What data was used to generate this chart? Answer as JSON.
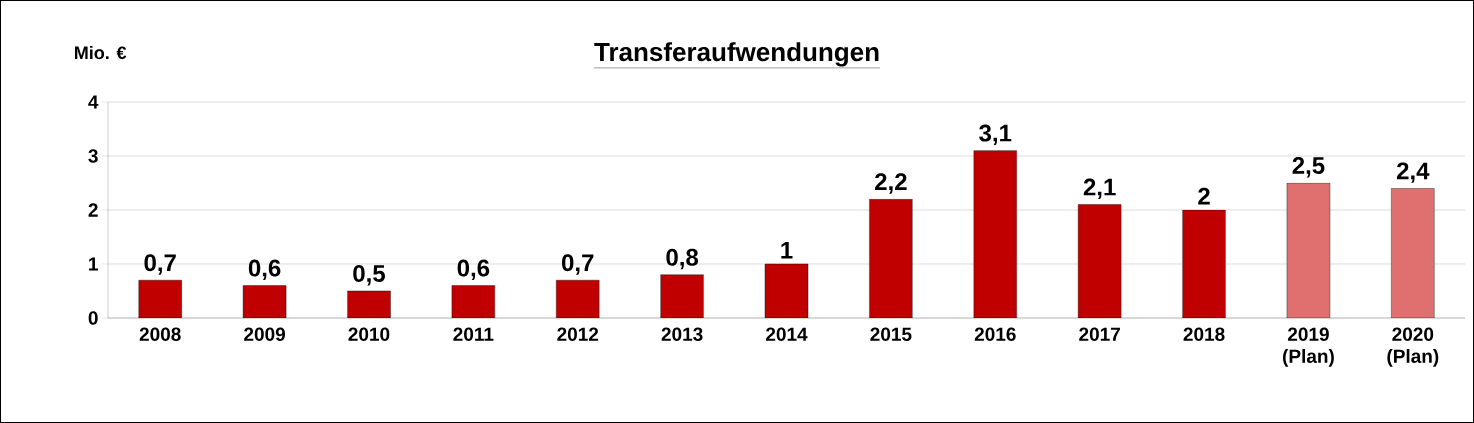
{
  "chart_data": {
    "type": "bar",
    "title": "Transferaufwendungen",
    "ylabel": "Mio. €",
    "categories": [
      "2008",
      "2009",
      "2010",
      "2011",
      "2012",
      "2013",
      "2014",
      "2015",
      "2016",
      "2017",
      "2018",
      "2019 (Plan)",
      "2020 (Plan)"
    ],
    "values": [
      0.7,
      0.6,
      0.5,
      0.6,
      0.7,
      0.8,
      1,
      2.2,
      3.1,
      2.1,
      2,
      2.5,
      2.4
    ],
    "value_labels": [
      "0,7",
      "0,6",
      "0,5",
      "0,6",
      "0,7",
      "0,8",
      "1",
      "2,2",
      "3,1",
      "2,1",
      "2",
      "2,5",
      "2,4"
    ],
    "colors": [
      "#c00000",
      "#c00000",
      "#c00000",
      "#c00000",
      "#c00000",
      "#c00000",
      "#c00000",
      "#c00000",
      "#c00000",
      "#c00000",
      "#c00000",
      "#e07070",
      "#e07070"
    ],
    "ylim": [
      0,
      4
    ],
    "yticks": [
      0,
      1,
      2,
      3,
      4
    ],
    "grid": "y"
  }
}
